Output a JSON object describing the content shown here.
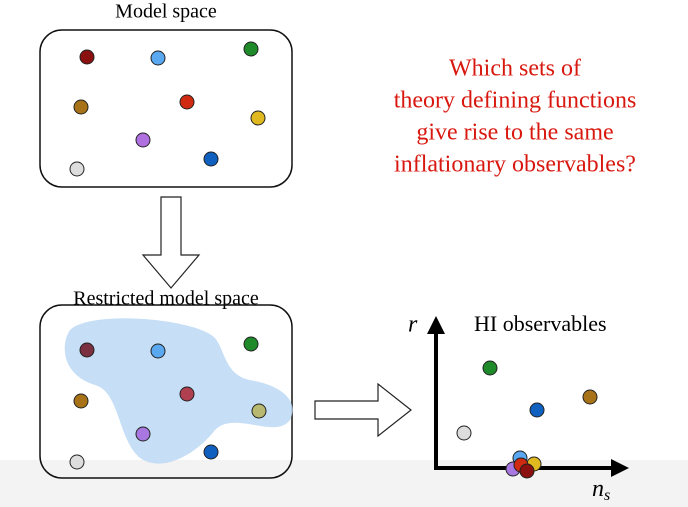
{
  "top_panel": {
    "label": "Model space"
  },
  "question": {
    "lines": [
      "Which sets of",
      "theory defining functions",
      "give rise to the same",
      "inflationary observables?"
    ]
  },
  "bottom_panel": {
    "label": "Restricted model space"
  },
  "plot": {
    "title": "HI observables",
    "y_axis_label": "r",
    "x_axis_label": "n",
    "x_axis_label_subscript": "s"
  }
}
